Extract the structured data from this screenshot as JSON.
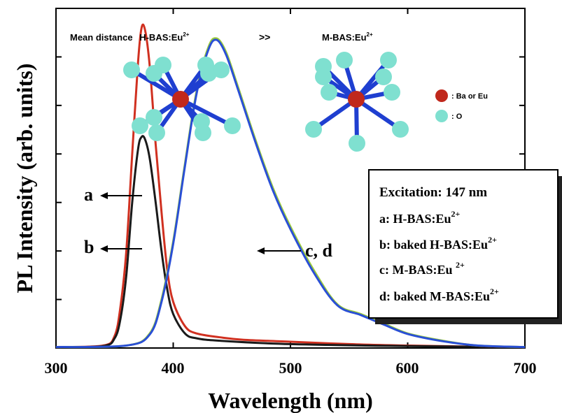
{
  "chart_data": {
    "type": "line",
    "xlabel": "Wavelength (nm)",
    "ylabel": "PL Intensity (arb. units)",
    "xlim": [
      300,
      700
    ],
    "ylim": [
      0,
      7
    ],
    "xticks": [
      300,
      400,
      500,
      600,
      700
    ],
    "xtick_labels": [
      "300",
      "400",
      "500",
      "600",
      "700"
    ],
    "ytick_labels_shown": false,
    "grid": false,
    "legend": {
      "placement": "right",
      "title": "Excitation: 147 nm",
      "entries": [
        {
          "prefix": "a: ",
          "text": "H-BAS:Eu",
          "sup": "2+"
        },
        {
          "prefix": "b: ",
          "text": "baked H-BAS:Eu",
          "sup": "2+"
        },
        {
          "prefix": "c: ",
          "text": "M-BAS:Eu ",
          "sup": "2+"
        },
        {
          "prefix": "d: ",
          "text": "baked M-BAS:Eu",
          "sup": "2+"
        }
      ]
    },
    "series": [
      {
        "name": "a",
        "color": "#d03020",
        "x": [
          300,
          340,
          350,
          355,
          360,
          365,
          370,
          373,
          376,
          380,
          385,
          390,
          395,
          400,
          410,
          420,
          440,
          460,
          500,
          550,
          600,
          650,
          700
        ],
        "y": [
          0.02,
          0.05,
          0.25,
          0.85,
          2.0,
          4.0,
          5.9,
          6.6,
          6.55,
          5.8,
          4.2,
          2.8,
          1.6,
          0.95,
          0.45,
          0.3,
          0.22,
          0.17,
          0.13,
          0.08,
          0.05,
          0.03,
          0.02
        ]
      },
      {
        "name": "b",
        "color": "#1a1a1a",
        "x": [
          300,
          340,
          350,
          355,
          360,
          365,
          370,
          373,
          376,
          380,
          385,
          390,
          395,
          400,
          410,
          420,
          440,
          500,
          600,
          700
        ],
        "y": [
          0.02,
          0.04,
          0.2,
          0.6,
          1.5,
          3.0,
          4.1,
          4.35,
          4.3,
          3.9,
          3.0,
          2.0,
          1.2,
          0.7,
          0.3,
          0.2,
          0.15,
          0.08,
          0.04,
          0.02
        ]
      },
      {
        "name": "c",
        "color": "#9ccc3a",
        "x": [
          300,
          360,
          380,
          390,
          400,
          410,
          420,
          430,
          437,
          445,
          455,
          470,
          485,
          500,
          520,
          540,
          560,
          580,
          600,
          630,
          660,
          700
        ],
        "y": [
          0.02,
          0.05,
          0.3,
          1.0,
          2.2,
          3.8,
          5.3,
          6.2,
          6.38,
          6.1,
          5.4,
          4.3,
          3.3,
          2.5,
          1.6,
          0.9,
          0.7,
          0.5,
          0.3,
          0.15,
          0.05,
          0.02
        ]
      },
      {
        "name": "d",
        "color": "#2a4fd6",
        "x": [
          300,
          360,
          380,
          390,
          400,
          410,
          420,
          430,
          437,
          445,
          455,
          470,
          485,
          500,
          520,
          540,
          560,
          580,
          600,
          630,
          660,
          700
        ],
        "y": [
          0.02,
          0.05,
          0.28,
          0.95,
          2.15,
          3.75,
          5.25,
          6.15,
          6.35,
          6.05,
          5.35,
          4.25,
          3.25,
          2.45,
          1.55,
          0.88,
          0.68,
          0.48,
          0.29,
          0.14,
          0.05,
          0.02
        ]
      }
    ],
    "annotations": [
      {
        "label": "a",
        "target_series": "a"
      },
      {
        "label": "b",
        "target_series": "b"
      },
      {
        "label": "c, d",
        "target_series": "d"
      }
    ]
  },
  "inset": {
    "title_text": "Mean distance",
    "left_label": "H-BAS:Eu",
    "left_sup": "2+",
    "operator": ">>",
    "right_label": "M-BAS:Eu",
    "right_sup": "2+",
    "legend": [
      {
        "label": ": Ba or Eu",
        "color": "#c0281c"
      },
      {
        "label": ": O",
        "color": "#7fe0d0"
      }
    ],
    "bond_color": "#1f3fd0"
  }
}
